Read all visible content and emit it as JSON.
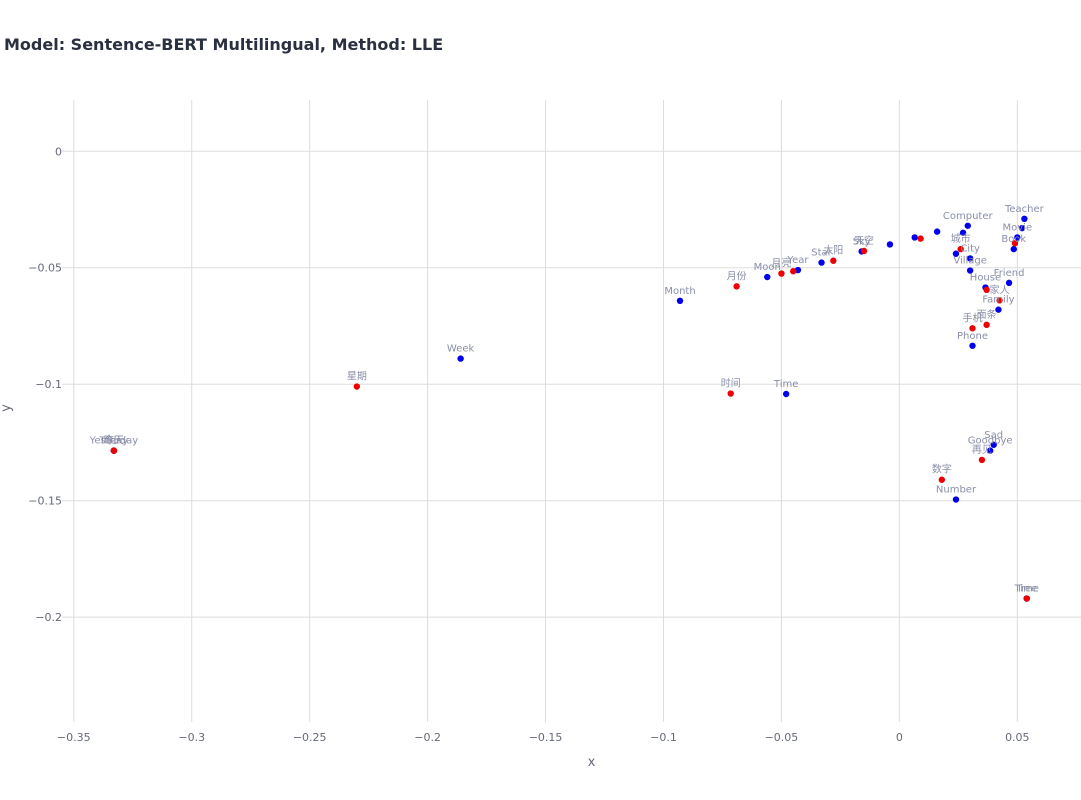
{
  "chart_data": {
    "type": "scatter",
    "title": "Model: Sentence-BERT Multilingual, Method: LLE",
    "xlabel": "x",
    "ylabel": "y",
    "xlim": [
      -0.355,
      0.077
    ],
    "ylim": [
      -0.245,
      0.022
    ],
    "x_ticks": [
      -0.35,
      -0.3,
      -0.25,
      -0.2,
      -0.15,
      -0.1,
      -0.05,
      0,
      0.05
    ],
    "x_tick_labels": [
      "−0.35",
      "−0.3",
      "−0.25",
      "−0.2",
      "−0.15",
      "−0.1",
      "−0.05",
      "0",
      "0.05"
    ],
    "y_ticks": [
      0,
      -0.05,
      -0.1,
      -0.15,
      -0.2
    ],
    "y_tick_labels": [
      "0",
      "−0.05",
      "−0.1",
      "−0.15",
      "−0.2"
    ],
    "grid": true,
    "legend": "none",
    "colors": {
      "english": "#0000ee",
      "chinese": "#ee0000",
      "label": "#8a8fa8",
      "grid": "#dddddd"
    },
    "series": [
      {
        "color": "#0000ee",
        "points": [
          {
            "x": -0.333,
            "y": -0.1285,
            "label": "Today"
          },
          {
            "x": -0.333,
            "y": -0.1285,
            "label": "Yesterday"
          },
          {
            "x": -0.186,
            "y": -0.089,
            "label": "Week"
          },
          {
            "x": -0.093,
            "y": -0.0642,
            "label": "Month"
          },
          {
            "x": -0.048,
            "y": -0.1042,
            "label": "Time"
          },
          {
            "x": -0.056,
            "y": -0.054,
            "label": "Moon"
          },
          {
            "x": -0.043,
            "y": -0.051,
            "label": "Year"
          },
          {
            "x": -0.033,
            "y": -0.0478,
            "label": "Star"
          },
          {
            "x": -0.016,
            "y": -0.043,
            "label": "Sky"
          },
          {
            "x": -0.004,
            "y": -0.04,
            "label": ""
          },
          {
            "x": 0.0065,
            "y": -0.037,
            "label": ""
          },
          {
            "x": 0.016,
            "y": -0.0345,
            "label": ""
          },
          {
            "x": 0.024,
            "y": -0.044,
            "label": ""
          },
          {
            "x": 0.027,
            "y": -0.035,
            "label": ""
          },
          {
            "x": 0.029,
            "y": -0.032,
            "label": "Computer"
          },
          {
            "x": 0.03,
            "y": -0.046,
            "label": "City"
          },
          {
            "x": 0.03,
            "y": -0.0512,
            "label": "Village"
          },
          {
            "x": 0.0465,
            "y": -0.0565,
            "label": "Friend"
          },
          {
            "x": 0.0365,
            "y": -0.0585,
            "label": "House"
          },
          {
            "x": 0.042,
            "y": -0.068,
            "label": "Family"
          },
          {
            "x": 0.031,
            "y": -0.0835,
            "label": "Phone"
          },
          {
            "x": 0.024,
            "y": -0.1495,
            "label": "Number"
          },
          {
            "x": 0.0385,
            "y": -0.1285,
            "label": "Goodbye"
          },
          {
            "x": 0.04,
            "y": -0.126,
            "label": "Sad"
          },
          {
            "x": 0.054,
            "y": -0.192,
            "label": "Tree"
          },
          {
            "x": 0.054,
            "y": -0.192,
            "label": "Time"
          },
          {
            "x": 0.0485,
            "y": -0.042,
            "label": "Book"
          },
          {
            "x": 0.05,
            "y": -0.037,
            "label": "Movie"
          },
          {
            "x": 0.052,
            "y": -0.033,
            "label": ""
          },
          {
            "x": 0.053,
            "y": -0.029,
            "label": "Teacher"
          }
        ]
      },
      {
        "color": "#ee0000",
        "points": [
          {
            "x": -0.333,
            "y": -0.1285,
            "label": "今天"
          },
          {
            "x": -0.333,
            "y": -0.1285,
            "label": "昨天"
          },
          {
            "x": -0.23,
            "y": -0.101,
            "label": "星期"
          },
          {
            "x": -0.0715,
            "y": -0.104,
            "label": "时间"
          },
          {
            "x": -0.069,
            "y": -0.058,
            "label": "月份"
          },
          {
            "x": -0.05,
            "y": -0.0525,
            "label": "月亮"
          },
          {
            "x": -0.045,
            "y": -0.0515,
            "label": ""
          },
          {
            "x": -0.028,
            "y": -0.047,
            "label": "太阳"
          },
          {
            "x": -0.015,
            "y": -0.0428,
            "label": "天空"
          },
          {
            "x": 0.009,
            "y": -0.0375,
            "label": ""
          },
          {
            "x": 0.026,
            "y": -0.042,
            "label": "城市"
          },
          {
            "x": 0.031,
            "y": -0.076,
            "label": "手机"
          },
          {
            "x": 0.037,
            "y": -0.0745,
            "label": "面条"
          },
          {
            "x": 0.0425,
            "y": -0.064,
            "label": "家人"
          },
          {
            "x": 0.037,
            "y": -0.0595,
            "label": ""
          },
          {
            "x": 0.018,
            "y": -0.141,
            "label": "数字"
          },
          {
            "x": 0.035,
            "y": -0.1325,
            "label": "再见"
          },
          {
            "x": 0.049,
            "y": -0.0395,
            "label": ""
          },
          {
            "x": 0.054,
            "y": -0.192,
            "label": ""
          }
        ]
      }
    ]
  }
}
